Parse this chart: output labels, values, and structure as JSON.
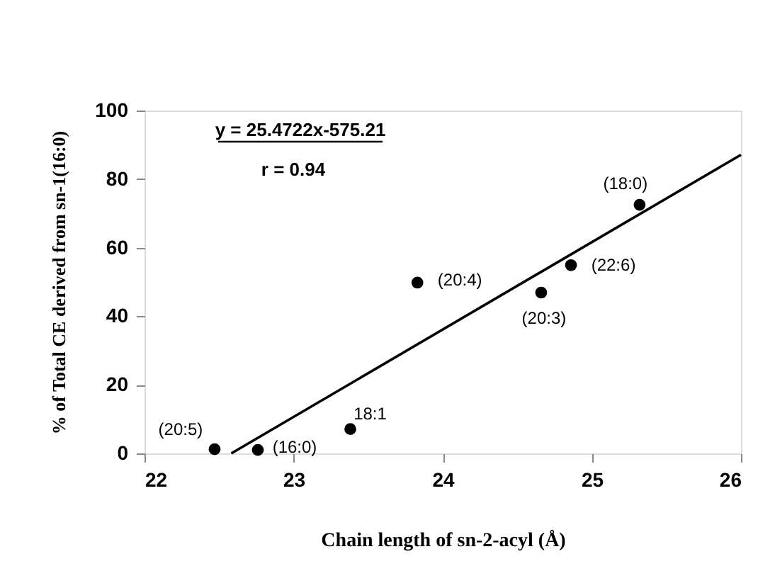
{
  "chart_data": {
    "type": "scatter",
    "xlabel": "Chain length of sn-2-acyl (Å)",
    "ylabel": "% of Total CE derived from sn-1(16:0)",
    "xlim": [
      22,
      26
    ],
    "xticks": [
      22,
      23,
      24,
      25,
      26
    ],
    "ylim": [
      0,
      100
    ],
    "yticks": [
      0,
      20,
      40,
      60,
      80,
      100
    ],
    "grid": false,
    "series": [
      {
        "marker": "circle",
        "color": "#000000",
        "x": [
          22.47,
          22.76,
          23.38,
          23.83,
          24.66,
          24.86,
          25.32
        ],
        "values": [
          1.2,
          1.0,
          7.1,
          49.8,
          46.9,
          54.9,
          72.5
        ]
      },
      {
        "type": "line",
        "marker": "none",
        "line_style": "solid",
        "color": "#000000",
        "x": [
          22.582,
          26
        ],
        "values": [
          0,
          87.1
        ]
      }
    ],
    "annotations": [
      "y = 25.4722x-575.21",
      "r = 0.94",
      {
        "text": "(20:5)",
        "x": 22.47,
        "y": 1.2
      },
      {
        "text": "(16:0)",
        "x": 22.76,
        "y": 1.0
      },
      {
        "text": "18:1",
        "x": 23.38,
        "y": 7.1
      },
      {
        "text": "(20:4)",
        "x": 23.83,
        "y": 49.8
      },
      {
        "text": "(20:3)",
        "x": 24.66,
        "y": 46.9
      },
      {
        "text": "(22:6)",
        "x": 24.86,
        "y": 54.9
      },
      {
        "text": "(18:0)",
        "x": 25.32,
        "y": 72.5
      }
    ]
  }
}
